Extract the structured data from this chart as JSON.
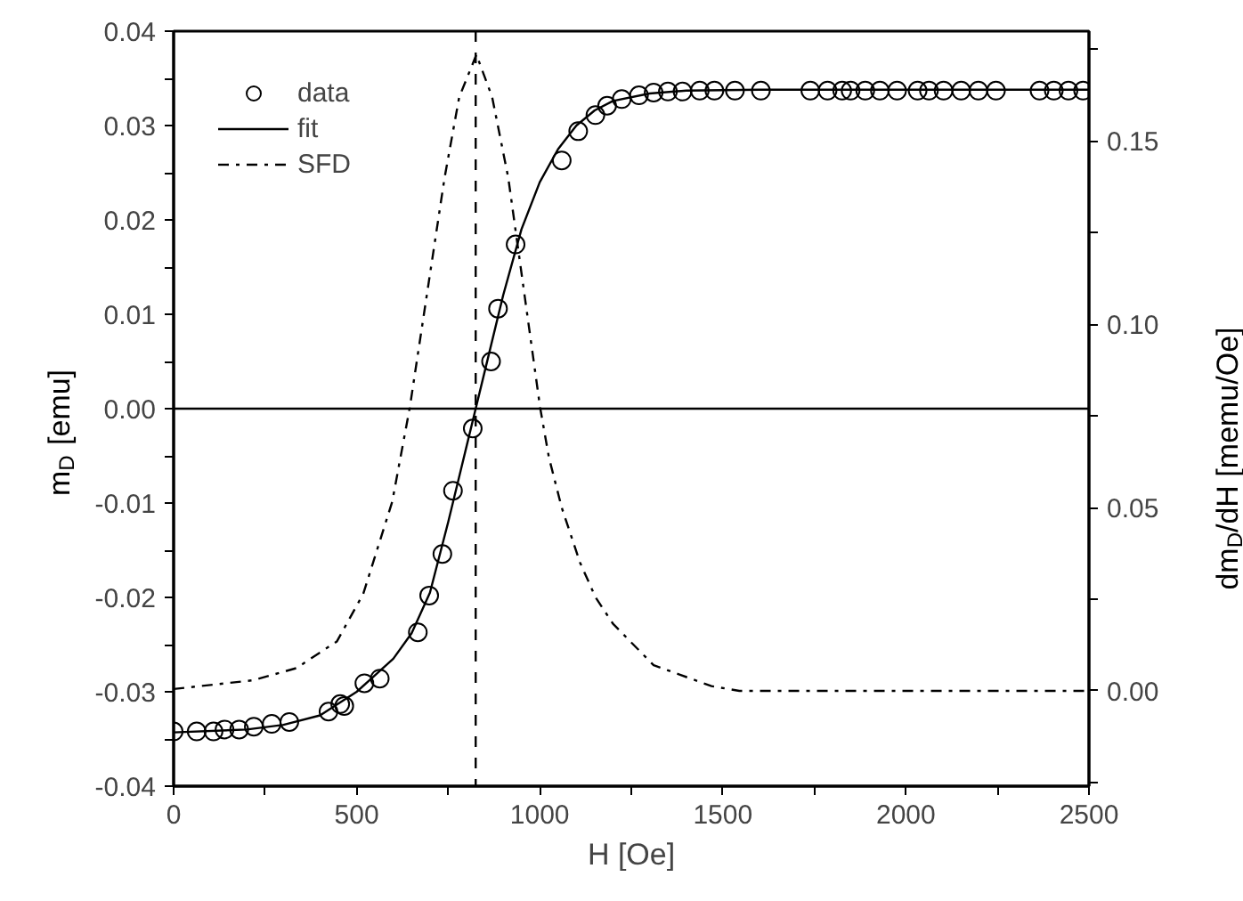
{
  "chart_data": {
    "type": "line",
    "xlabel": "H [Oe]",
    "ylabel": "m$_{D}$ [emu]",
    "y2label": "dm$_{D}$/dH [memu/Oe]",
    "xlim": [
      0,
      2500
    ],
    "ylim": [
      -0.04,
      0.04
    ],
    "y2lim": [
      -0.026,
      0.18
    ],
    "xticks": [
      0,
      {
        "value": 250,
        "label": null
      },
      500,
      {
        "value": 750,
        "label": null
      },
      1000,
      {
        "value": 1250,
        "label": null
      },
      1500,
      {
        "value": 1750,
        "label": null
      },
      2000,
      {
        "value": 2250,
        "label": null
      },
      2500
    ],
    "yticks": [
      {
        "value": -0.04,
        "label": "-0.04"
      },
      {
        "value": -0.035,
        "label": null
      },
      {
        "value": -0.03,
        "label": "-0.03"
      },
      {
        "value": -0.025,
        "label": null
      },
      {
        "value": -0.02,
        "label": "-0.02"
      },
      {
        "value": -0.015,
        "label": null
      },
      {
        "value": -0.01,
        "label": "-0.01"
      },
      {
        "value": -0.005,
        "label": null
      },
      {
        "value": 0,
        "label": "0.00"
      },
      {
        "value": 0.005,
        "label": null
      },
      {
        "value": 0.01,
        "label": "0.01"
      },
      {
        "value": 0.015,
        "label": null
      },
      {
        "value": 0.02,
        "label": "0.02"
      },
      {
        "value": 0.025,
        "label": null
      },
      {
        "value": 0.03,
        "label": "0.03"
      },
      {
        "value": 0.035,
        "label": null
      },
      {
        "value": 0.04,
        "label": "0.04"
      }
    ],
    "y2ticks": [
      {
        "value": -0.025,
        "label": null
      },
      {
        "value": 0,
        "label": "0.00"
      },
      {
        "value": 0.025,
        "label": null
      },
      {
        "value": 0.05,
        "label": "0.05"
      },
      {
        "value": 0.075,
        "label": null
      },
      {
        "value": 0.1,
        "label": "0.10"
      },
      {
        "value": 0.125,
        "label": null
      },
      {
        "value": 0.15,
        "label": "0.15"
      },
      {
        "value": 0.175,
        "label": null
      }
    ],
    "grid": false,
    "legend": "top left",
    "series": [
      {
        "name": "data",
        "type": "scatter",
        "marker": "circle",
        "color": "#000000",
        "x": [
          0,
          63,
          109,
          139,
          179,
          219,
          268,
          316,
          423,
          455,
          466,
          521,
          563,
          667,
          698,
          734,
          763,
          817,
          867,
          886,
          934,
          1060,
          1105,
          1152,
          1184,
          1224,
          1271,
          1311,
          1350,
          1390,
          1437,
          1477,
          1533,
          1604,
          1739,
          1786,
          1826,
          1849,
          1889,
          1929,
          1976,
          2032,
          2063,
          2103,
          2151,
          2198,
          2246,
          2365,
          2404,
          2444,
          2484
        ],
        "values": [
          -0.0342,
          -0.0342,
          -0.0342,
          -0.034,
          -0.034,
          -0.0337,
          -0.0334,
          -0.0332,
          -0.0321,
          -0.0313,
          -0.0315,
          -0.0291,
          -0.0286,
          -0.0237,
          -0.0198,
          -0.0154,
          -0.0087,
          -0.0021,
          0.005,
          0.0106,
          0.0174,
          0.0263,
          0.0294,
          0.0311,
          0.0321,
          0.0328,
          0.0332,
          0.0335,
          0.0336,
          0.0336,
          0.0337,
          0.0337,
          0.0337,
          0.0337,
          0.0337,
          0.0337,
          0.0337,
          0.0337,
          0.0337,
          0.0337,
          0.0337,
          0.0337,
          0.0337,
          0.0337,
          0.0337,
          0.0337,
          0.0337,
          0.0337,
          0.0337,
          0.0337,
          0.0337
        ]
      },
      {
        "name": "fit",
        "line_style": "solid",
        "color": "#000000",
        "x": [
          0,
          200,
          300,
          400,
          500,
          600,
          650,
          700,
          750,
          800,
          825,
          850,
          900,
          950,
          1000,
          1050,
          1100,
          1150,
          1200,
          1300,
          1400,
          1600,
          2500
        ],
        "values": [
          -0.0343,
          -0.034,
          -0.0335,
          -0.0325,
          -0.03,
          -0.0265,
          -0.0238,
          -0.0195,
          -0.012,
          -0.004,
          0.0,
          0.004,
          0.012,
          0.019,
          0.024,
          0.0275,
          0.03,
          0.0316,
          0.0326,
          0.0334,
          0.0337,
          0.0338,
          0.0338
        ]
      },
      {
        "name": "SFD",
        "type": "line",
        "axis": "y2",
        "line_style": "dashdot",
        "color": "#000000",
        "x": [
          0,
          218,
          335,
          446,
          518,
          597,
          645,
          740,
          780,
          827,
          870,
          914,
          1001,
          1025,
          1060,
          1110,
          1152,
          1200,
          1311,
          1469,
          1545,
          2500
        ],
        "values": [
          0.0005,
          0.0029,
          0.0062,
          0.0135,
          0.0265,
          0.0516,
          0.0773,
          0.14,
          0.162,
          0.1736,
          0.162,
          0.14,
          0.0773,
          0.0637,
          0.05,
          0.035,
          0.0256,
          0.0183,
          0.007,
          0.0013,
          0.0,
          0.0
        ]
      }
    ],
    "ref_lines": [
      {
        "axis": "x",
        "value": 825,
        "line_style": "dashed",
        "color": "#000000"
      },
      {
        "axis": "y",
        "value": 0,
        "line_style": "solid",
        "color": "#000000"
      }
    ]
  }
}
